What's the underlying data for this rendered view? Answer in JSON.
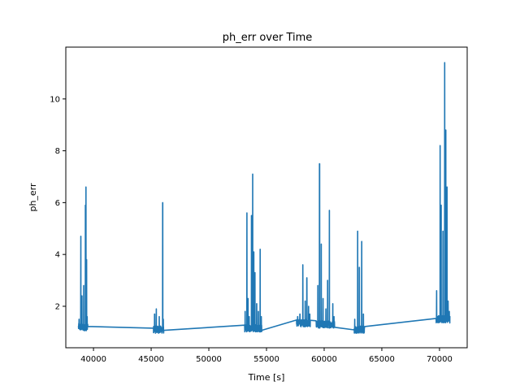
{
  "chart_data": {
    "type": "line",
    "title": "ph_err over Time",
    "xlabel": "Time [s]",
    "ylabel": "ph_err",
    "xlim": [
      37600,
      72400
    ],
    "ylim": [
      0.4,
      12.0
    ],
    "xticks": [
      40000,
      45000,
      50000,
      55000,
      60000,
      65000,
      70000
    ],
    "yticks": [
      2,
      4,
      6,
      8,
      10
    ],
    "grid": false,
    "legend": "none",
    "series": [
      {
        "color": "#1f77b4",
        "segments": [
          {
            "start": 38700,
            "end": 39500,
            "base": 1.2,
            "spikes": [
              [
                38750,
                1.5
              ],
              [
                38900,
                4.7
              ],
              [
                39000,
                2.4
              ],
              [
                39150,
                2.8
              ],
              [
                39300,
                5.9
              ],
              [
                39350,
                6.6
              ],
              [
                39400,
                3.8
              ],
              [
                39450,
                1.6
              ]
            ]
          },
          {
            "start": 45200,
            "end": 46100,
            "base": 1.1,
            "spikes": [
              [
                45300,
                1.7
              ],
              [
                45450,
                1.9
              ],
              [
                45700,
                1.6
              ],
              [
                46000,
                6.0
              ],
              [
                46050,
                1.5
              ]
            ]
          },
          {
            "start": 53100,
            "end": 54600,
            "base": 1.15,
            "spikes": [
              [
                53150,
                1.8
              ],
              [
                53300,
                5.6
              ],
              [
                53400,
                2.3
              ],
              [
                53500,
                1.6
              ],
              [
                53700,
                5.5
              ],
              [
                53800,
                7.1
              ],
              [
                53900,
                4.1
              ],
              [
                54000,
                3.3
              ],
              [
                54150,
                2.1
              ],
              [
                54300,
                1.8
              ],
              [
                54450,
                4.2
              ],
              [
                54550,
                1.6
              ]
            ]
          },
          {
            "start": 57600,
            "end": 58800,
            "base": 1.35,
            "spikes": [
              [
                57700,
                1.6
              ],
              [
                57900,
                1.7
              ],
              [
                58150,
                3.6
              ],
              [
                58350,
                2.2
              ],
              [
                58500,
                3.1
              ],
              [
                58650,
                2.0
              ],
              [
                58750,
                1.7
              ]
            ]
          },
          {
            "start": 59300,
            "end": 60900,
            "base": 1.3,
            "spikes": [
              [
                59450,
                2.8
              ],
              [
                59600,
                7.5
              ],
              [
                59750,
                4.4
              ],
              [
                59900,
                2.3
              ],
              [
                60150,
                1.9
              ],
              [
                60300,
                3.0
              ],
              [
                60450,
                5.7
              ],
              [
                60750,
                2.1
              ],
              [
                60850,
                1.6
              ]
            ]
          },
          {
            "start": 62600,
            "end": 63500,
            "base": 1.1,
            "spikes": [
              [
                62650,
                1.5
              ],
              [
                62900,
                4.9
              ],
              [
                63050,
                3.5
              ],
              [
                63250,
                4.5
              ],
              [
                63400,
                1.7
              ]
            ]
          },
          {
            "start": 69700,
            "end": 70900,
            "base": 1.5,
            "spikes": [
              [
                69750,
                2.6
              ],
              [
                70050,
                8.2
              ],
              [
                70150,
                5.9
              ],
              [
                70300,
                4.9
              ],
              [
                70450,
                11.4
              ],
              [
                70550,
                8.8
              ],
              [
                70650,
                6.6
              ],
              [
                70750,
                2.2
              ],
              [
                70850,
                1.8
              ]
            ]
          }
        ]
      }
    ]
  }
}
